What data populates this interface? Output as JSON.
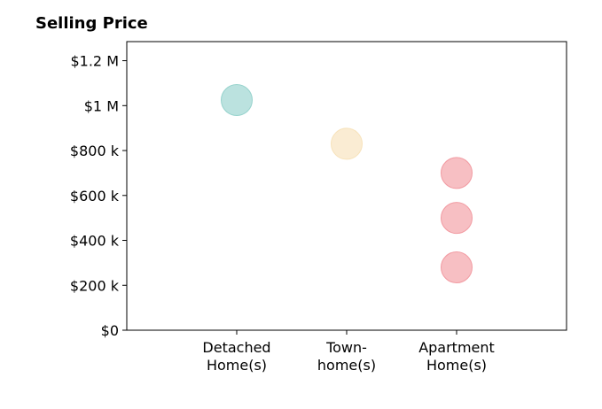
{
  "chart_data": {
    "type": "scatter",
    "title": "Selling Price",
    "xlabel": "",
    "ylabel": "",
    "categories": [
      [
        "Detached",
        "Home(s)"
      ],
      [
        "Town-",
        "home(s)"
      ],
      [
        "Apartment",
        "Home(s)"
      ]
    ],
    "points": [
      {
        "category": 0,
        "value": 1025000,
        "color": "#8ecfc9"
      },
      {
        "category": 1,
        "value": 830000,
        "color": "#f6e0b5"
      },
      {
        "category": 2,
        "value": 700000,
        "color": "#f1949b"
      },
      {
        "category": 2,
        "value": 500000,
        "color": "#f1949b"
      },
      {
        "category": 2,
        "value": 280000,
        "color": "#f1949b"
      }
    ],
    "y_ticks": [
      {
        "value": 0,
        "label": "$0"
      },
      {
        "value": 200000,
        "label": "$200 k"
      },
      {
        "value": 400000,
        "label": "$400 k"
      },
      {
        "value": 600000,
        "label": "$600 k"
      },
      {
        "value": 800000,
        "label": "$800 k"
      },
      {
        "value": 1000000,
        "label": "$1 M"
      },
      {
        "value": 1200000,
        "label": "$1.2 M"
      }
    ],
    "ylim": [
      0,
      1285000
    ],
    "xlim": [
      -1,
      3
    ],
    "grid": false,
    "legend": "none"
  }
}
